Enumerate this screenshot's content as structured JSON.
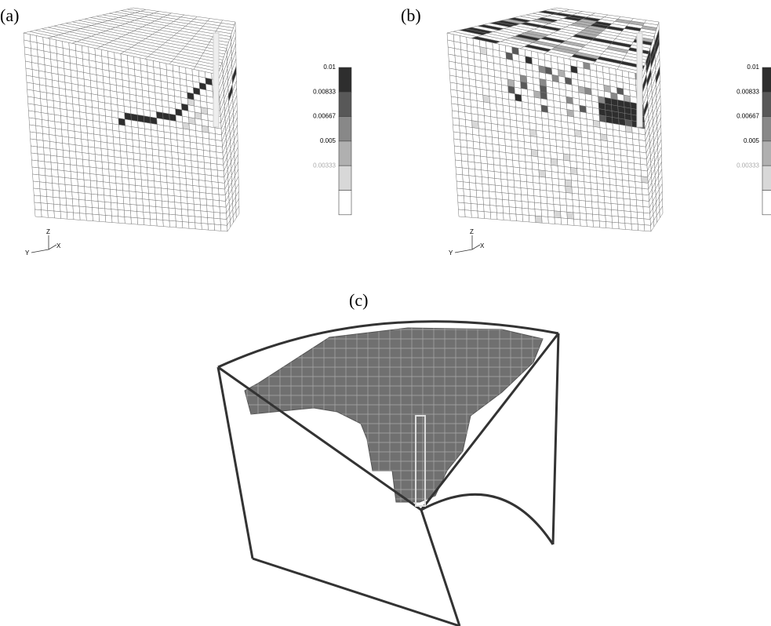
{
  "panels": [
    {
      "label": "(a)",
      "colorbar": [
        "0.01",
        "0.00833",
        "0.00667",
        "0.005",
        "0.00333"
      ],
      "axes": {
        "z": "Z",
        "y": "Y",
        "x": "X"
      }
    },
    {
      "label": "(b)",
      "colorbar": [
        "0.01",
        "0.00833",
        "0.00667",
        "0.005",
        "0.00333"
      ],
      "axes": {
        "z": "Z",
        "y": "Y",
        "x": "X"
      }
    },
    {
      "label": "(c)"
    }
  ]
}
